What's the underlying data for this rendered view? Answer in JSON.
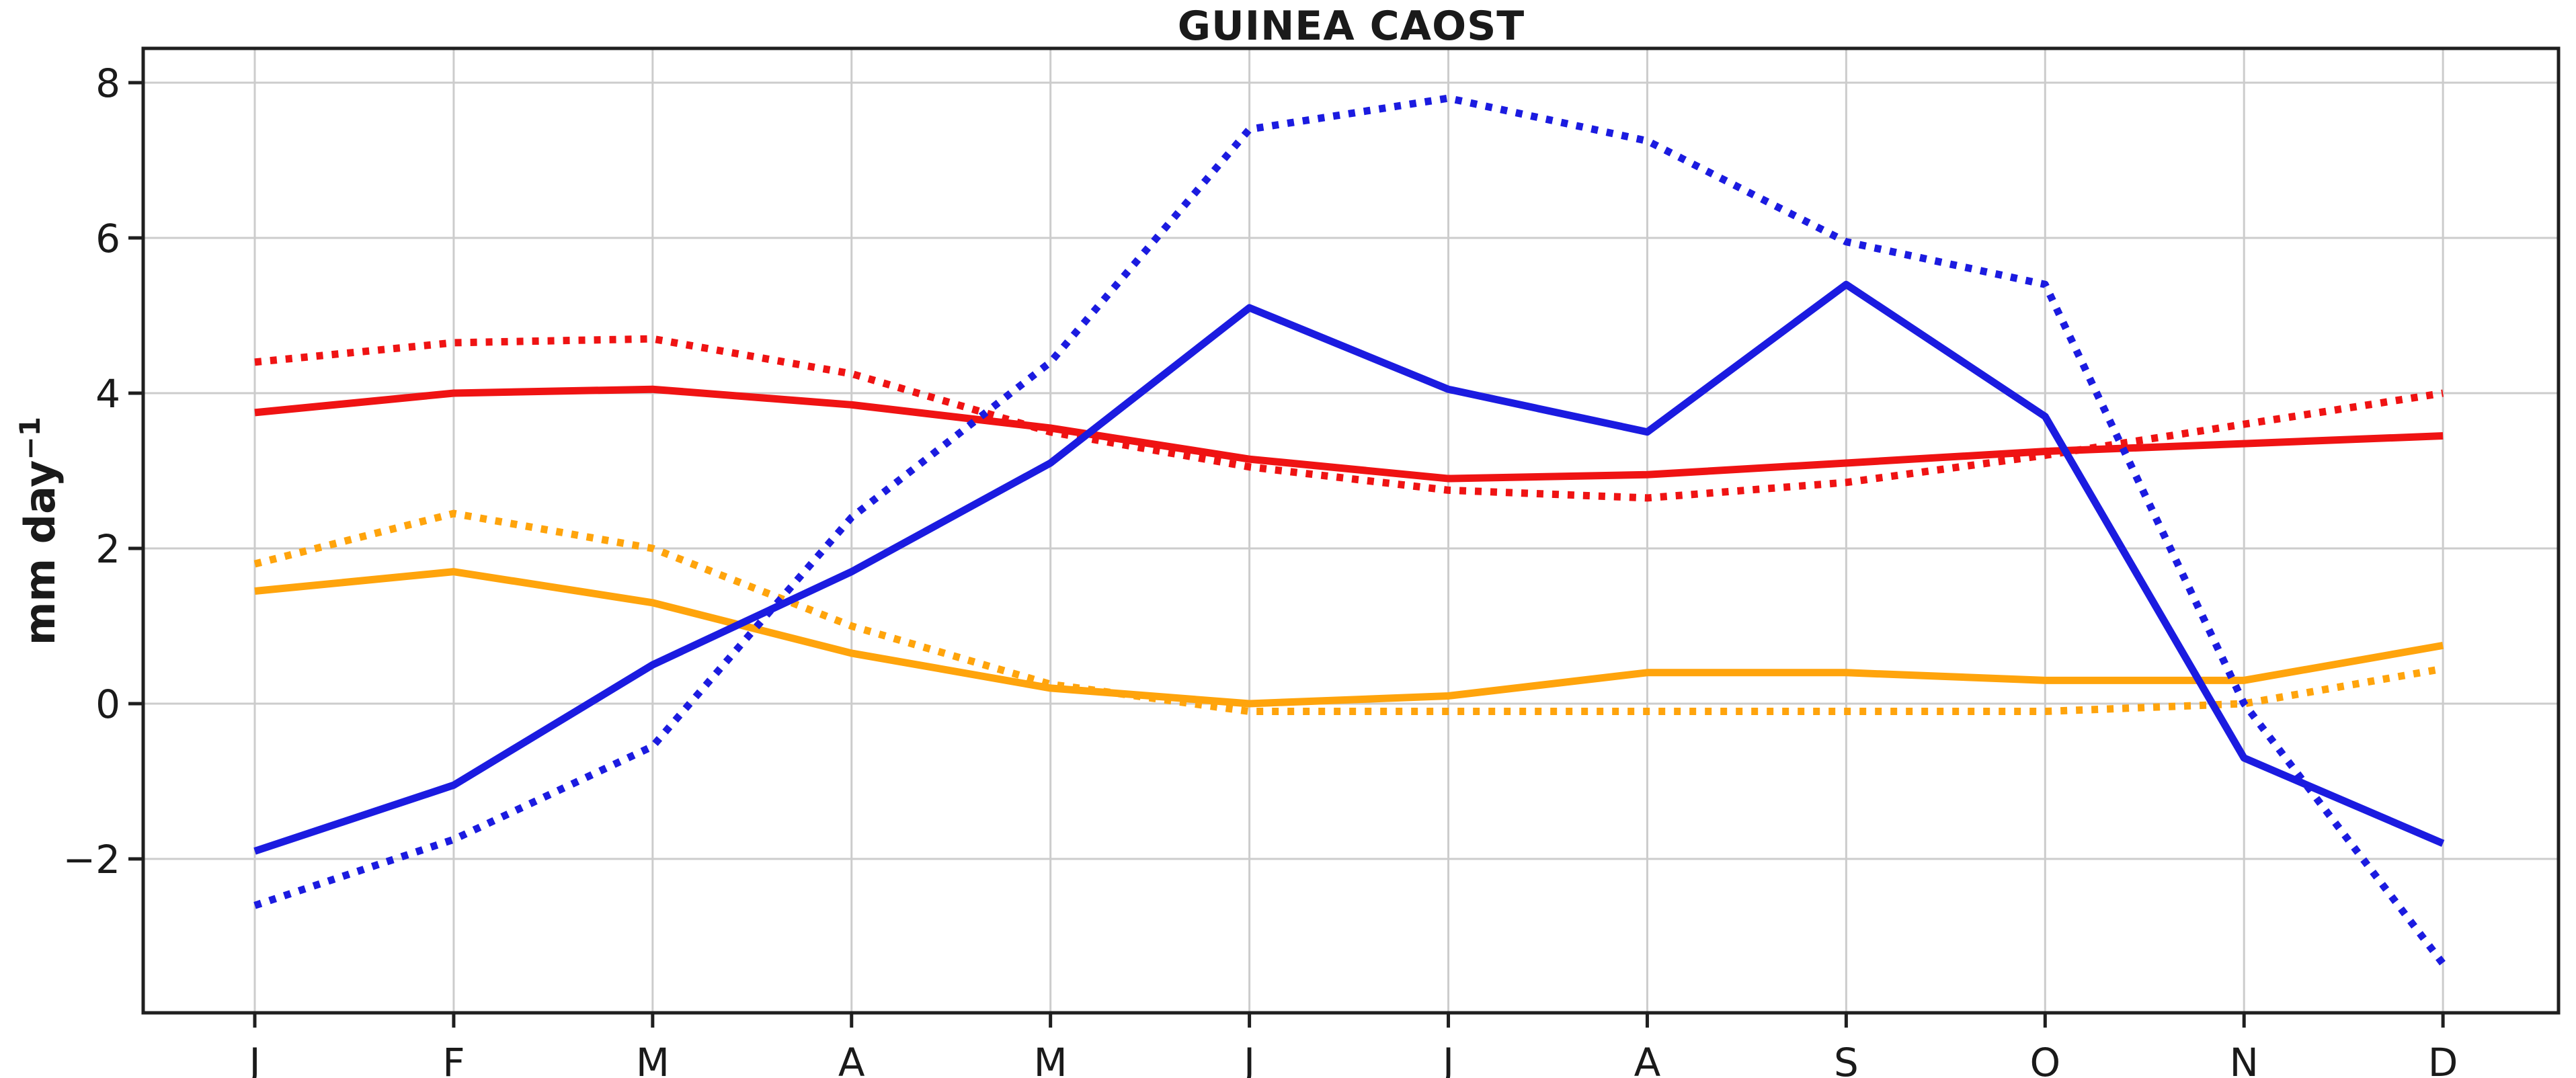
{
  "figure": {
    "title": "GUINEA CAOST",
    "ylabel_base": "mm day",
    "ylabel_exponent": "−1"
  },
  "colors": {
    "red": "#ef1313",
    "blue": "#1b1be0",
    "orange": "#ffa40c",
    "grid": "#cccccc",
    "axis": "#1f1f1f",
    "text": "#1a1a1a",
    "background": "#ffffff"
  },
  "chart_data": {
    "type": "line",
    "title": "GUINEA CAOST",
    "xlabel": "",
    "ylabel": "mm day−1",
    "categories": [
      "J",
      "F",
      "M",
      "A",
      "M",
      "J",
      "J",
      "A",
      "S",
      "O",
      "N",
      "D"
    ],
    "yticks": [
      -2,
      0,
      2,
      4,
      6,
      8
    ],
    "ylim": [
      -3.97,
      8.43
    ],
    "grid": true,
    "legend": "none",
    "series": [
      {
        "name": "orange-dotted",
        "color": "orange",
        "dash": "dotted",
        "values": [
          1.8,
          2.45,
          2.0,
          1.0,
          0.25,
          -0.1,
          -0.1,
          -0.1,
          -0.1,
          -0.1,
          0.0,
          0.45
        ]
      },
      {
        "name": "orange-solid",
        "color": "orange",
        "dash": "solid",
        "values": [
          1.45,
          1.7,
          1.3,
          0.65,
          0.2,
          0.0,
          0.1,
          0.4,
          0.4,
          0.3,
          0.3,
          0.75
        ]
      },
      {
        "name": "red-dotted",
        "color": "red",
        "dash": "dotted",
        "values": [
          4.4,
          4.65,
          4.7,
          4.25,
          3.5,
          3.05,
          2.75,
          2.65,
          2.85,
          3.2,
          3.6,
          4.0
        ]
      },
      {
        "name": "red-solid",
        "color": "red",
        "dash": "solid",
        "values": [
          3.75,
          4.0,
          4.05,
          3.85,
          3.55,
          3.15,
          2.9,
          2.95,
          3.1,
          3.25,
          3.35,
          3.45
        ]
      },
      {
        "name": "blue-dotted",
        "color": "blue",
        "dash": "dotted",
        "values": [
          -2.6,
          -1.75,
          -0.55,
          2.4,
          4.4,
          7.4,
          7.8,
          7.25,
          5.95,
          5.4,
          0.0,
          -3.35
        ]
      },
      {
        "name": "blue-solid",
        "color": "blue",
        "dash": "solid",
        "values": [
          -1.9,
          -1.05,
          0.5,
          1.7,
          3.1,
          5.1,
          4.05,
          3.5,
          5.4,
          3.7,
          -0.7,
          -1.8
        ]
      }
    ]
  }
}
